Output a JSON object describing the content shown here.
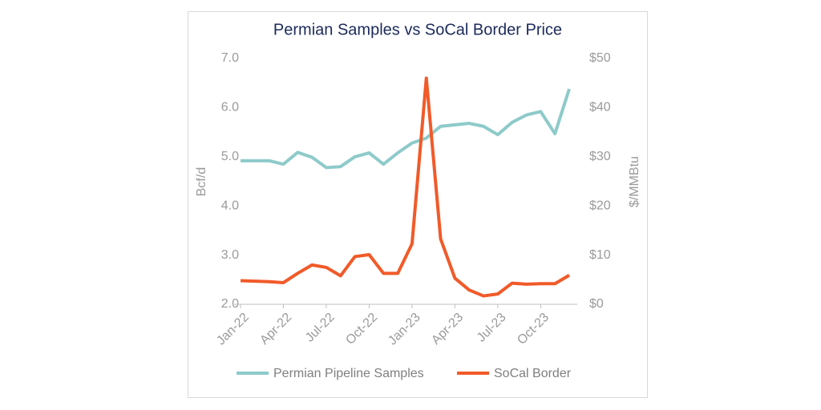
{
  "chart_data": {
    "type": "line",
    "title": "Permian Samples vs SoCal Border Price",
    "y_label": "Bcf/d",
    "y2_label": "$/MMBtu",
    "categories": [
      "Jan-22",
      null,
      null,
      "Apr-22",
      null,
      null,
      "Jul-22",
      null,
      null,
      "Oct-22",
      null,
      null,
      "Jan-23",
      null,
      null,
      "Apr-23",
      null,
      null,
      "Jul-23",
      null,
      null,
      "Oct-23",
      null,
      null
    ],
    "series": [
      {
        "name": "Permian Pipeline Samples",
        "color": "#8ecaca",
        "values": [
          4.92,
          4.92,
          4.92,
          4.85,
          5.09,
          4.99,
          4.78,
          4.8,
          5.0,
          5.08,
          4.85,
          5.08,
          5.28,
          5.38,
          5.62,
          5.65,
          5.68,
          5.62,
          5.45,
          5.7,
          5.85,
          5.92,
          5.47,
          6.38
        ]
      },
      {
        "name": "SoCal Border",
        "color": "#f15a29",
        "axis": "y2",
        "values": [
          4.8,
          4.7,
          4.6,
          4.4,
          6.3,
          8.0,
          7.5,
          5.8,
          9.7,
          10.1,
          6.3,
          6.3,
          12.3,
          46.0,
          13.3,
          5.3,
          2.9,
          1.7,
          2.1,
          4.3,
          4.1,
          4.2,
          4.2,
          5.9
        ]
      }
    ],
    "ylim": [
      2.0,
      7.0
    ],
    "yticks": [
      {
        "value": 2,
        "label": "2.0"
      },
      {
        "value": 3,
        "label": "3.0"
      },
      {
        "value": 4,
        "label": "4.0"
      },
      {
        "value": 5,
        "label": "5.0"
      },
      {
        "value": 6,
        "label": "6.0"
      },
      {
        "value": 7,
        "label": "7.0"
      }
    ],
    "y2lim": [
      0,
      50
    ],
    "y2ticks": [
      {
        "value": 0,
        "label": "$0"
      },
      {
        "value": 10,
        "label": "$10"
      },
      {
        "value": 20,
        "label": "$20"
      },
      {
        "value": 30,
        "label": "$30"
      },
      {
        "value": 40,
        "label": "$40"
      },
      {
        "value": 50,
        "label": "$50"
      }
    ],
    "legend": "bottom"
  }
}
